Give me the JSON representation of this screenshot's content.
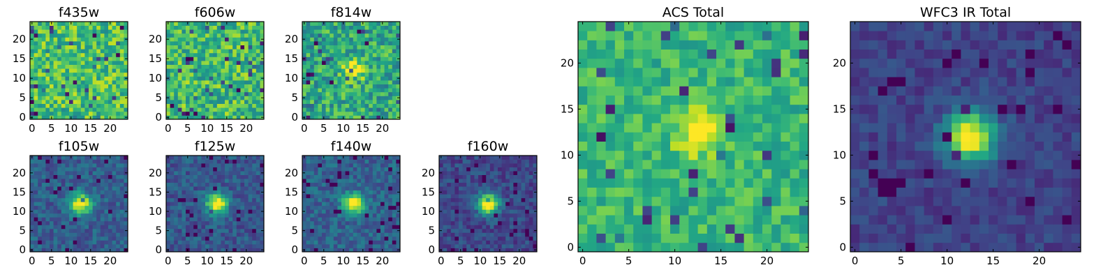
{
  "chart_data": [
    {
      "type": "heatmap",
      "title": "f435w",
      "xticks": [
        "0",
        "5",
        "10",
        "15",
        "20"
      ],
      "yticks": [
        "0",
        "5",
        "10",
        "15",
        "20"
      ],
      "xlim": [
        -0.5,
        24.5
      ],
      "ylim": [
        -0.5,
        24.5
      ],
      "grid_size": 25,
      "colormap": "viridis",
      "source_peak": null,
      "noise": 0.22,
      "base": 0.7,
      "seed": 11
    },
    {
      "type": "heatmap",
      "title": "f606w",
      "xticks": [
        "0",
        "5",
        "10",
        "15",
        "20"
      ],
      "yticks": [
        "0",
        "5",
        "10",
        "15",
        "20"
      ],
      "xlim": [
        -0.5,
        24.5
      ],
      "ylim": [
        -0.5,
        24.5
      ],
      "grid_size": 25,
      "colormap": "viridis",
      "source_peak": null,
      "noise": 0.22,
      "base": 0.68,
      "seed": 23
    },
    {
      "type": "heatmap",
      "title": "f814w",
      "xticks": [
        "0",
        "5",
        "10",
        "15",
        "20"
      ],
      "yticks": [
        "0",
        "5",
        "10",
        "15",
        "20"
      ],
      "xlim": [
        -0.5,
        24.5
      ],
      "ylim": [
        -0.5,
        24.5
      ],
      "grid_size": 25,
      "colormap": "viridis",
      "source_peak": [
        12.5,
        12
      ],
      "noise": 0.22,
      "base": 0.6,
      "seed": 37
    },
    {
      "type": "heatmap",
      "title": "f105w",
      "xticks": [
        "0",
        "5",
        "10",
        "15",
        "20"
      ],
      "yticks": [
        "0",
        "5",
        "10",
        "15",
        "20"
      ],
      "xlim": [
        -0.5,
        24.5
      ],
      "ylim": [
        -0.5,
        24.5
      ],
      "grid_size": 25,
      "colormap": "viridis",
      "source_peak": [
        12.5,
        12
      ],
      "noise": 0.12,
      "base": 0.3,
      "seed": 41
    },
    {
      "type": "heatmap",
      "title": "f125w",
      "xticks": [
        "0",
        "5",
        "10",
        "15",
        "20"
      ],
      "yticks": [
        "0",
        "5",
        "10",
        "15",
        "20"
      ],
      "xlim": [
        -0.5,
        24.5
      ],
      "ylim": [
        -0.5,
        24.5
      ],
      "grid_size": 25,
      "colormap": "viridis",
      "source_peak": [
        12.5,
        12
      ],
      "noise": 0.12,
      "base": 0.28,
      "seed": 53
    },
    {
      "type": "heatmap",
      "title": "f140w",
      "xticks": [
        "0",
        "5",
        "10",
        "15",
        "20"
      ],
      "yticks": [
        "0",
        "5",
        "10",
        "15",
        "20"
      ],
      "xlim": [
        -0.5,
        24.5
      ],
      "ylim": [
        -0.5,
        24.5
      ],
      "grid_size": 25,
      "colormap": "viridis",
      "source_peak": [
        12.5,
        12
      ],
      "noise": 0.12,
      "base": 0.32,
      "seed": 67
    },
    {
      "type": "heatmap",
      "title": "f160w",
      "xticks": [
        "0",
        "5",
        "10",
        "15",
        "20"
      ],
      "yticks": [
        "0",
        "5",
        "10",
        "15",
        "20"
      ],
      "xlim": [
        -0.5,
        24.5
      ],
      "ylim": [
        -0.5,
        24.5
      ],
      "grid_size": 25,
      "colormap": "viridis",
      "source_peak": [
        12,
        12
      ],
      "noise": 0.11,
      "base": 0.22,
      "seed": 79
    },
    {
      "type": "heatmap",
      "title": "ACS Total",
      "xticks": [
        "0",
        "5",
        "10",
        "15",
        "20"
      ],
      "yticks": [
        "0",
        "5",
        "10",
        "15",
        "20"
      ],
      "xlim": [
        -0.5,
        24.5
      ],
      "ylim": [
        -0.5,
        24.5
      ],
      "grid_size": 25,
      "colormap": "viridis",
      "source_peak": [
        12.5,
        12.5
      ],
      "noise": 0.14,
      "base": 0.66,
      "seed": 97
    },
    {
      "type": "heatmap",
      "title": "WFC3 IR Total",
      "xticks": [
        "0",
        "5",
        "10",
        "15",
        "20"
      ],
      "yticks": [
        "0",
        "5",
        "10",
        "15",
        "20"
      ],
      "xlim": [
        -0.5,
        24.5
      ],
      "ylim": [
        -0.5,
        24.5
      ],
      "grid_size": 25,
      "colormap": "viridis",
      "source_peak": [
        12.5,
        12
      ],
      "noise": 0.08,
      "base": 0.2,
      "seed": 101
    }
  ]
}
